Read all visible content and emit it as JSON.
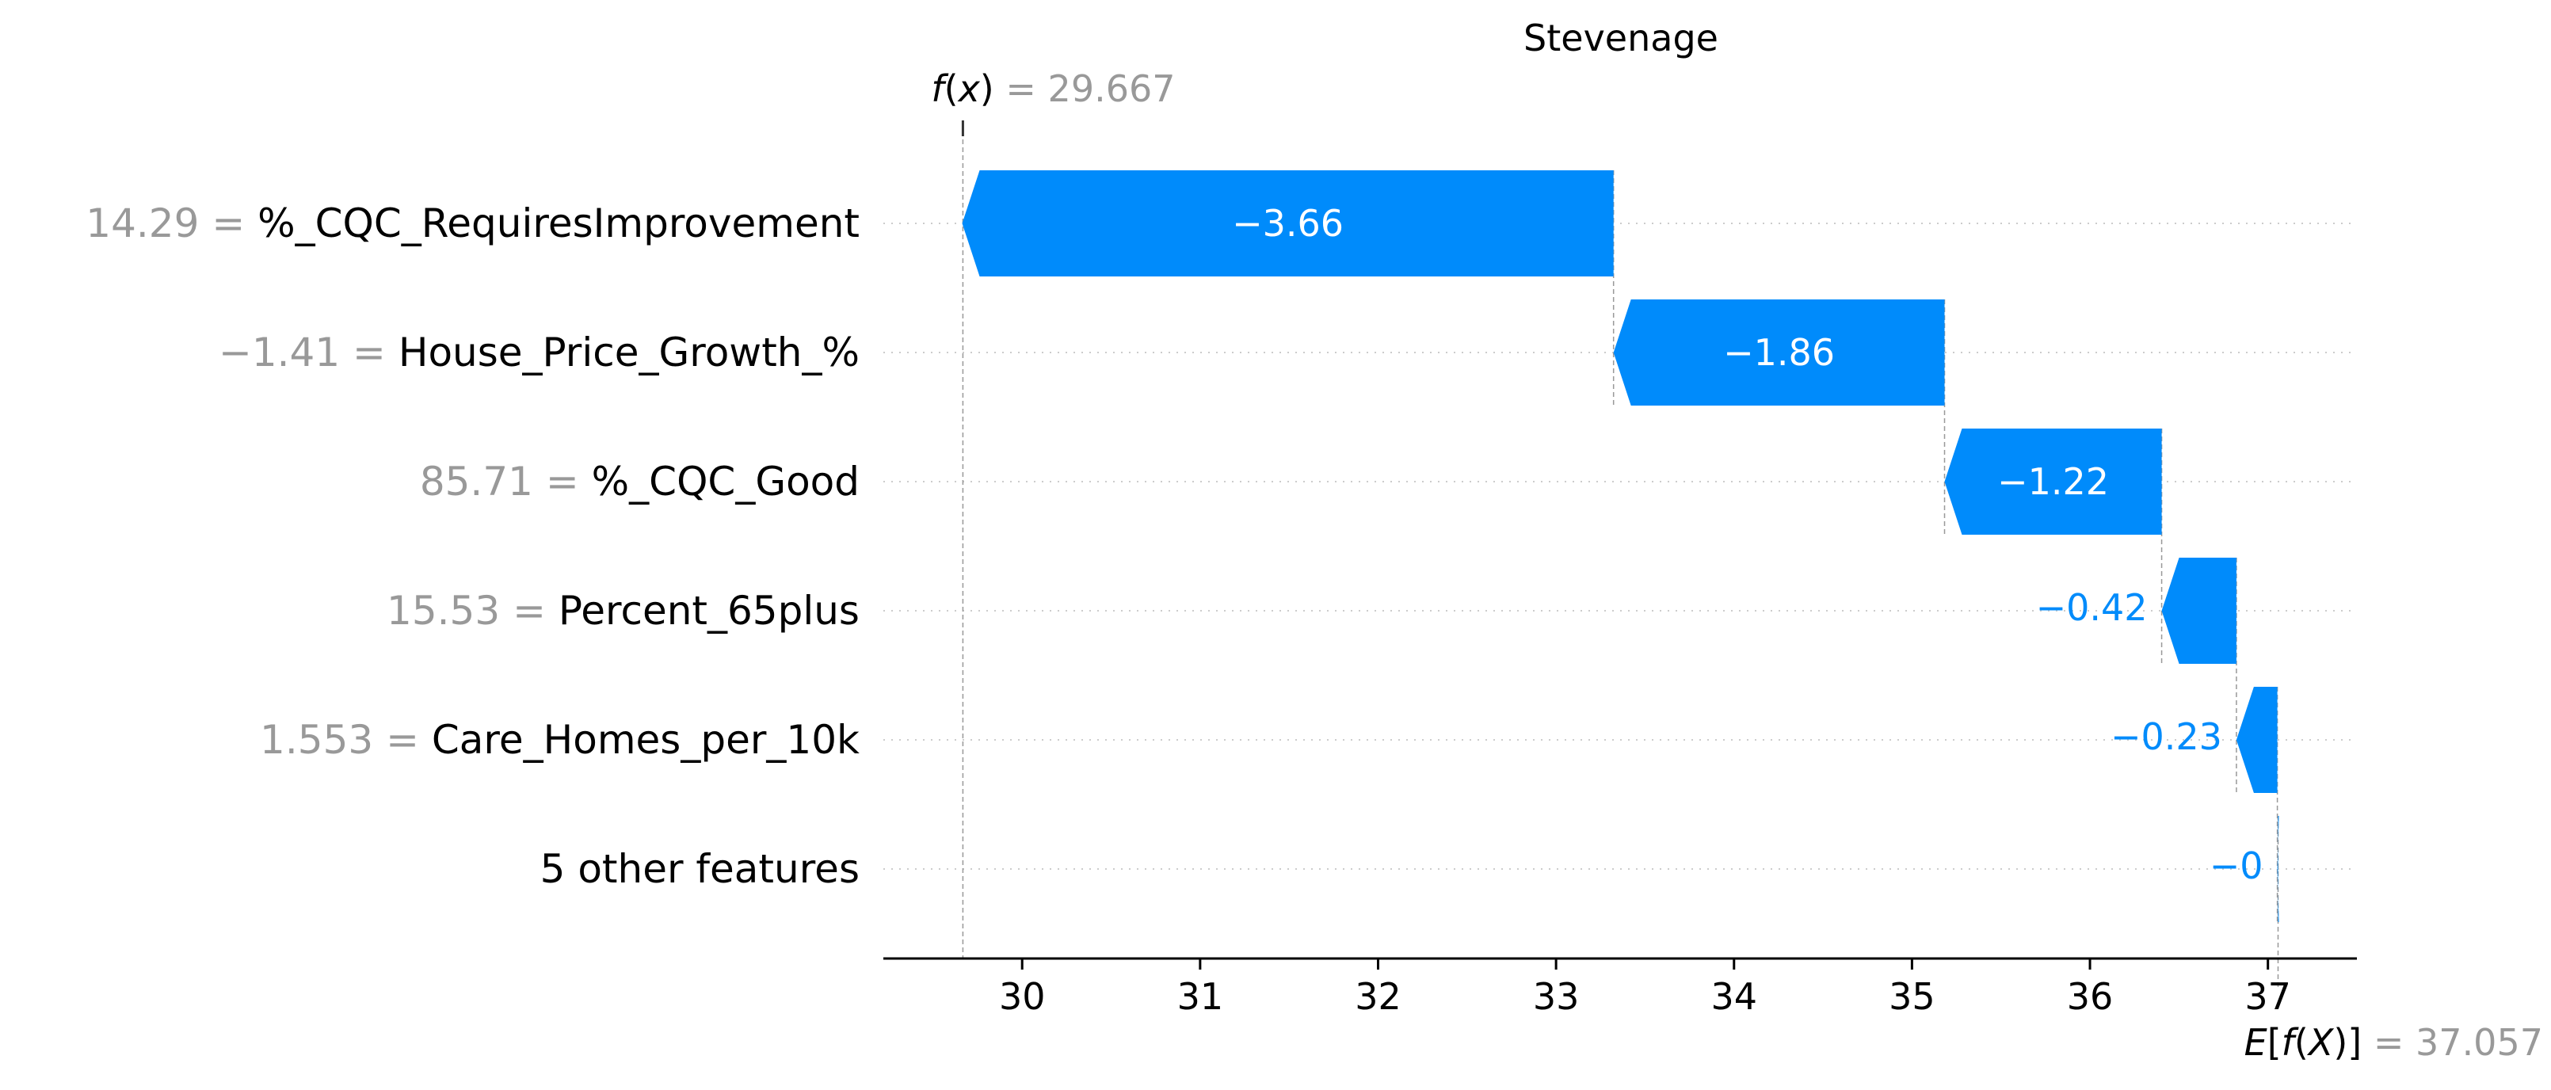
{
  "chart_data": {
    "type": "waterfall",
    "title": "Stevenage",
    "features": [
      {
        "value": "14.29",
        "name": "%_CQC_RequiresImprovement",
        "contribution": -3.66,
        "label": "−3.66"
      },
      {
        "value": "−1.41",
        "name": "House_Price_Growth_%",
        "contribution": -1.86,
        "label": "−1.86"
      },
      {
        "value": "85.71",
        "name": "%_CQC_Good",
        "contribution": -1.22,
        "label": "−1.22"
      },
      {
        "value": "15.53",
        "name": "Percent_65plus",
        "contribution": -0.42,
        "label": "−0.42"
      },
      {
        "value": "1.553",
        "name": "Care_Homes_per_10k",
        "contribution": -0.23,
        "label": "−0.23"
      },
      {
        "value": "",
        "name": "5 other features",
        "contribution": -0.004,
        "label": "−0"
      }
    ],
    "fx": {
      "label": "f(x)",
      "value": "29.667",
      "number": 29.667
    },
    "expected": {
      "label": "E[f(X)]",
      "value": "37.057",
      "number": 37.057
    },
    "x_ticks": [
      30,
      31,
      32,
      33,
      34,
      35,
      36,
      37
    ],
    "xlim": [
      29.22,
      37.5
    ],
    "colors": {
      "negative": "#008bfb",
      "positive": "#ff0051",
      "axis": "#000000",
      "grid": "#cccccc",
      "muted": "#999999"
    }
  }
}
